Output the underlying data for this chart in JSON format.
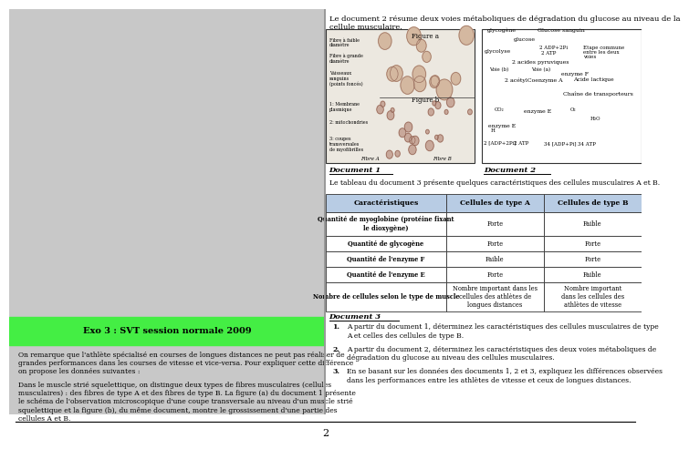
{
  "bg_color": "#ffffff",
  "green_banner_text": "Exo 3 : SVT session normale 2009",
  "left_paragraph1": "On remarque que l'athlète spécialisé en courses de longues distances ne peut pas réaliser de\ngrandes performances dans les courses de vitesse et vice-versa. Pour expliquer cette différence\non propose les données suivantes :",
  "left_paragraph2": "Dans le muscle strié squelettique, on distingue deux types de fibres musculaires (cellules\nmusculaires) : des fibres de type A et des fibres de type B. La figure (a) du document 1 présente\nle schéma de l'observation microscopique d'une coupe transversale au niveau d'un muscle strié\nsquelettique et la figure (b), du même document, montre le grossissement d'une partie des\ncellules A et B.",
  "right_top_text": "Le document 2 résume deux voies métaboliques de dégradation du glucose au niveau de la\ncellule musculaire.",
  "doc1_label": "Document 1",
  "doc2_label": "Document 2",
  "doc3_label": "Document 3",
  "fig_a_label": "Figure a",
  "fig_b_label": "Figure b",
  "left_fig_labels": [
    "Fibre à faible\ndiamètre",
    "Fibre à grande\ndiamètre",
    "Vaisseaux\nsanguins\n(points foncés)",
    "1: Membrane\nplasmique",
    "2: mitochondries",
    "3: coupes\ntransversales\nde myofibrilles"
  ],
  "fig_bottom_labels": [
    "Fibre A",
    "Fibre B"
  ],
  "table_intro": "Le tableau du document 3 présente quelques caractéristiques des cellules musculaires A et B.",
  "table_headers": [
    "Caractéristiques",
    "Cellules de type A",
    "Cellules de type B"
  ],
  "table_rows": [
    [
      "Quantité de myoglobine (protéine fixant\nle dioxygène)",
      "Forte",
      "Faible"
    ],
    [
      "Quantité de glycogène",
      "Forte",
      "Forte"
    ],
    [
      "Quantité de l'enzyme F",
      "Faible",
      "Forte"
    ],
    [
      "Quantité de l'enzyme E",
      "Forte",
      "Faible"
    ],
    [
      "Nombre de cellules selon le type de muscle",
      "Nombre important dans les\ncellules des athlètes de\nlongues distances",
      "Nombre important\ndans les cellules des\nathlètes de vitesse"
    ]
  ],
  "questions": [
    "A partir du document 1, déterminez les caractéristiques des cellules musculaires de type\nA et celles des cellules de type B.",
    "A partir du document 2, déterminez les caractéristiques des deux voies métaboliques de\ndégradation du glucose au niveau des cellules musculaires.",
    "En se basant sur les données des documents 1, 2 et 3, expliquez les différences observées\ndans les performances entre les athlètes de vitesse et ceux de longues distances."
  ],
  "page_number": "2"
}
